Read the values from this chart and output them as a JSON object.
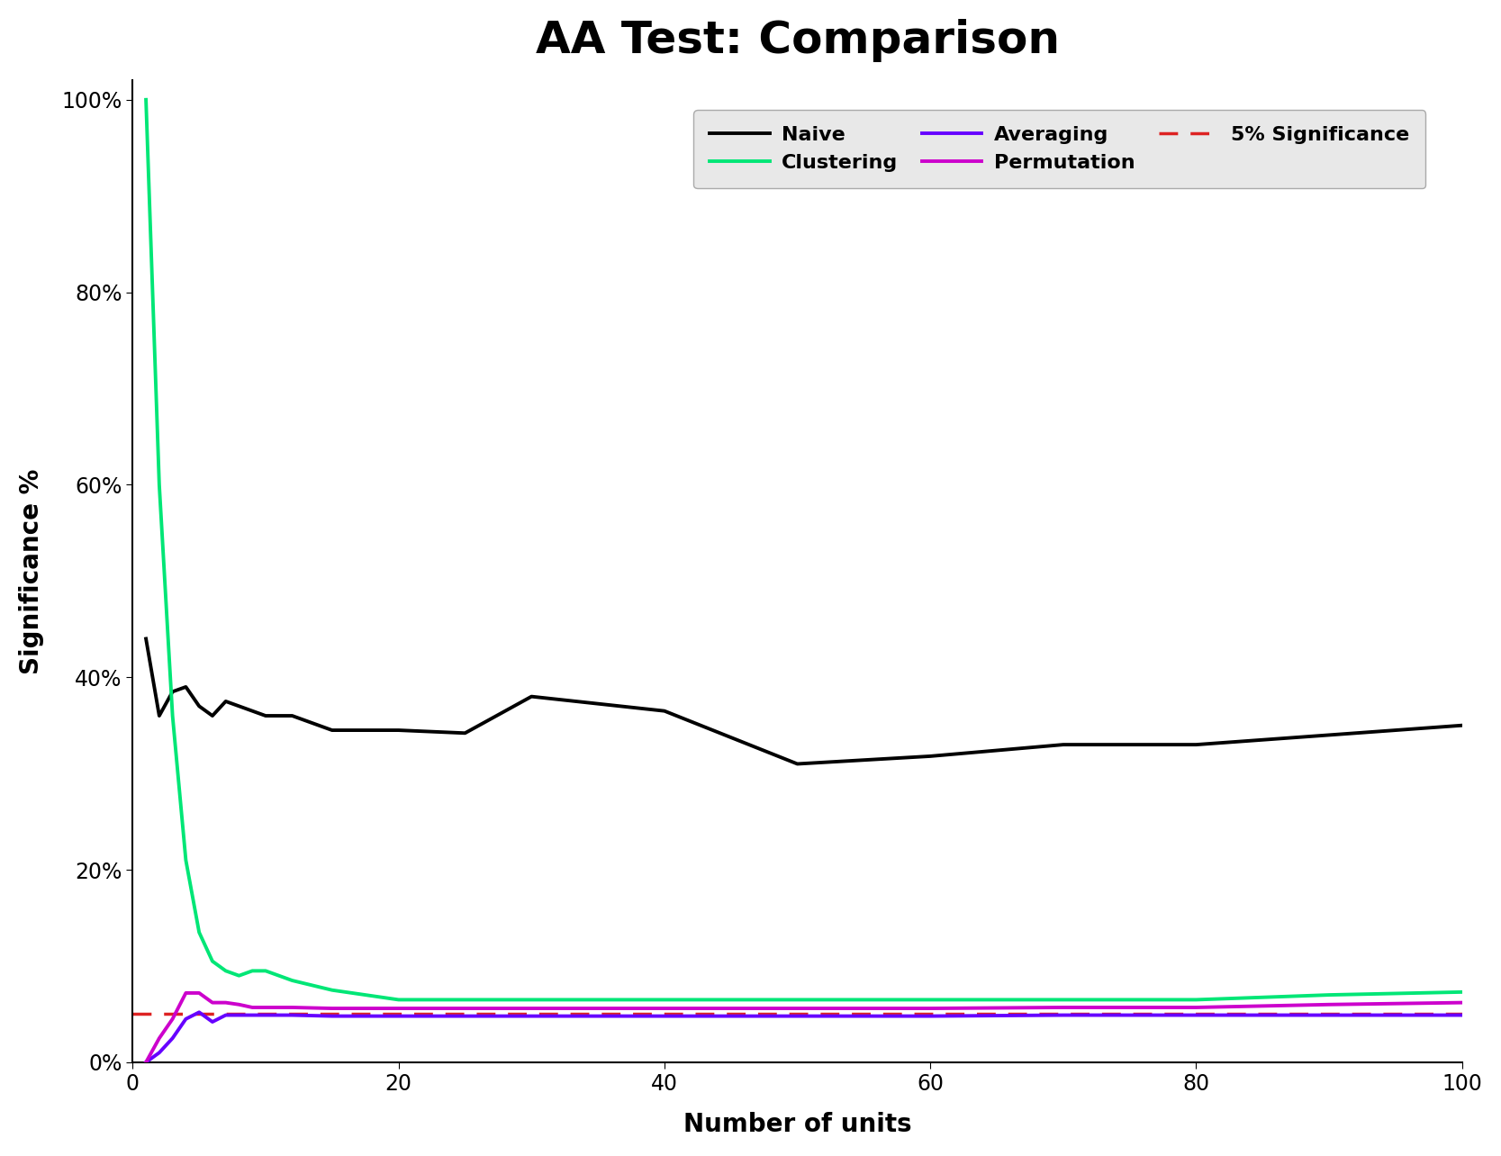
{
  "title": "AA Test: Comparison",
  "xlabel": "Number of units",
  "ylabel": "Significance %",
  "background_color": "#ffffff",
  "title_fontsize": 36,
  "label_fontsize": 20,
  "tick_fontsize": 17,
  "legend_fontsize": 16,
  "x": [
    1,
    2,
    3,
    4,
    5,
    6,
    7,
    8,
    9,
    10,
    12,
    15,
    20,
    25,
    30,
    40,
    50,
    60,
    70,
    80,
    90,
    100
  ],
  "naive": [
    0.44,
    0.36,
    0.385,
    0.39,
    0.37,
    0.36,
    0.375,
    0.37,
    0.365,
    0.36,
    0.36,
    0.345,
    0.345,
    0.342,
    0.38,
    0.365,
    0.31,
    0.318,
    0.33,
    0.33,
    0.34,
    0.35
  ],
  "clustering": [
    1.0,
    0.6,
    0.36,
    0.21,
    0.135,
    0.105,
    0.095,
    0.09,
    0.095,
    0.095,
    0.085,
    0.075,
    0.065,
    0.065,
    0.065,
    0.065,
    0.065,
    0.065,
    0.065,
    0.065,
    0.07,
    0.073
  ],
  "averaging": [
    0.0,
    0.01,
    0.025,
    0.045,
    0.052,
    0.042,
    0.049,
    0.049,
    0.049,
    0.049,
    0.049,
    0.048,
    0.048,
    0.048,
    0.048,
    0.048,
    0.048,
    0.048,
    0.049,
    0.049,
    0.049,
    0.049
  ],
  "permutation": [
    0.0,
    0.025,
    0.045,
    0.072,
    0.072,
    0.062,
    0.062,
    0.06,
    0.057,
    0.057,
    0.057,
    0.056,
    0.056,
    0.056,
    0.056,
    0.056,
    0.056,
    0.056,
    0.057,
    0.057,
    0.06,
    0.062
  ],
  "significance_level": 0.05,
  "naive_color": "#000000",
  "clustering_color": "#00e676",
  "averaging_color": "#6600ff",
  "permutation_color": "#cc00cc",
  "significance_color": "#dd2222",
  "ylim": [
    0.0,
    1.02
  ],
  "xlim": [
    0,
    100
  ],
  "legend_bg": "#e8e8e8",
  "yticks": [
    0.0,
    0.2,
    0.4,
    0.6,
    0.8,
    1.0
  ],
  "xticks": [
    0,
    20,
    40,
    60,
    80,
    100
  ]
}
